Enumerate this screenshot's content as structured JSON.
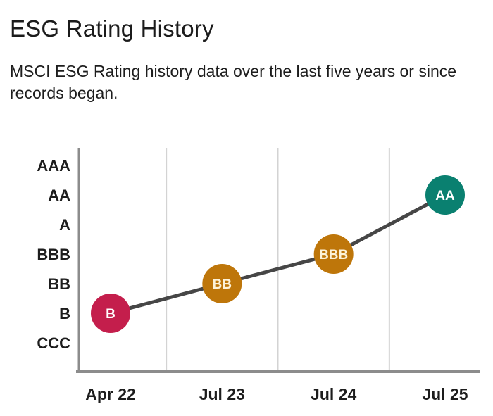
{
  "page": {
    "title": "ESG Rating History",
    "subtitle": "MSCI ESG Rating history data over the last five years or since records began."
  },
  "chart_data": {
    "type": "line",
    "title": "ESG Rating History",
    "subtitle": "MSCI ESG Rating history data over the last five years or since records began.",
    "categories": [
      "Apr 22",
      "Jul 23",
      "Jul 24",
      "Jul 25"
    ],
    "rating_scale_low_to_high": [
      "CCC",
      "B",
      "BB",
      "BBB",
      "A",
      "AA",
      "AAA"
    ],
    "y_axis_labels_top_to_bottom": [
      "AAA",
      "AA",
      "A",
      "BBB",
      "BB",
      "B",
      "CCC"
    ],
    "points": [
      {
        "category": "Apr 22",
        "rating": "B",
        "value": 1,
        "color": "#c41e4c",
        "label_color": "#ffffff"
      },
      {
        "category": "Jul 23",
        "rating": "BB",
        "value": 2,
        "color": "#be760a",
        "label_color": "#fdf3d9"
      },
      {
        "category": "Jul 24",
        "rating": "BBB",
        "value": 3,
        "color": "#be760a",
        "label_color": "#fdf3d9"
      },
      {
        "category": "Jul 25",
        "rating": "AA",
        "value": 5,
        "color": "#0a8070",
        "label_color": "#ffffff"
      }
    ],
    "colors": {
      "trend_line": "#464646",
      "axis_line": "#8c8c8c",
      "gridline": "#d3d3d3",
      "tick_label": "#1d1d1d"
    },
    "grid": "vertical-separators-between-categories",
    "legend": "none",
    "ylim": [
      "CCC",
      "AAA"
    ]
  }
}
